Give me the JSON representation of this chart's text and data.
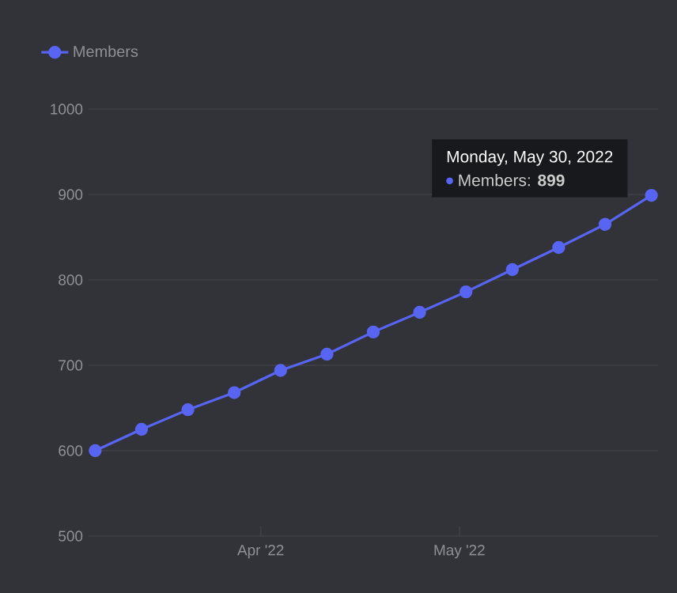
{
  "chart_data": {
    "type": "line",
    "x": [
      "2022-03-07",
      "2022-03-14",
      "2022-03-21",
      "2022-03-28",
      "2022-04-04",
      "2022-04-11",
      "2022-04-18",
      "2022-04-25",
      "2022-05-02",
      "2022-05-09",
      "2022-05-16",
      "2022-05-23",
      "2022-05-30"
    ],
    "series": [
      {
        "name": "Members",
        "color": "#5865f2",
        "values": [
          600,
          625,
          648,
          668,
          694,
          713,
          739,
          762,
          786,
          812,
          838,
          865,
          899
        ]
      }
    ],
    "xlim": [
      "2022-03-06",
      "2022-05-31"
    ],
    "xticks": [
      {
        "value": "2022-04-01",
        "label": "Apr '22"
      },
      {
        "value": "2022-05-01",
        "label": "May '22"
      }
    ],
    "ylim": [
      500,
      1000
    ],
    "yticks": [
      500,
      600,
      700,
      800,
      900,
      1000
    ],
    "grid": "y",
    "legend": "top left",
    "marker": "circle",
    "annotations": [
      "Monday, May 30, 2022",
      "Members: **899**"
    ]
  }
}
